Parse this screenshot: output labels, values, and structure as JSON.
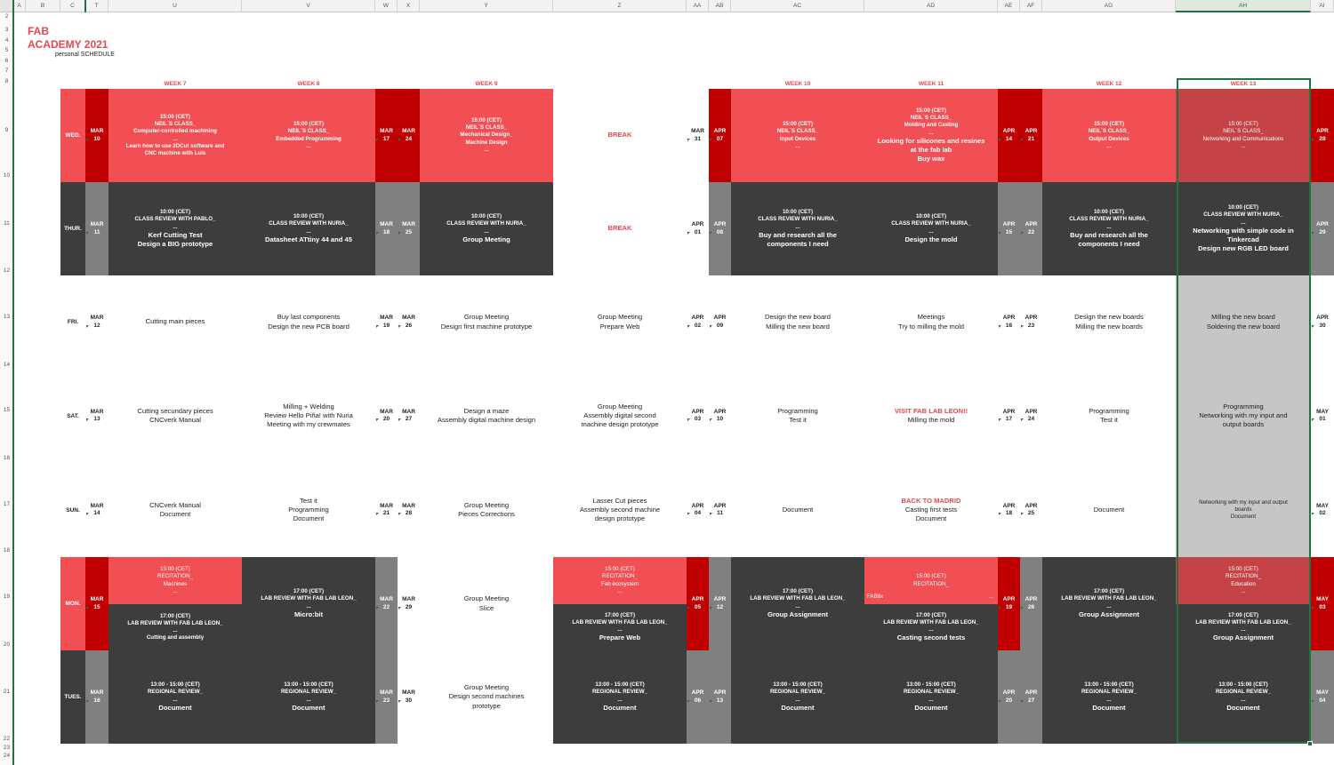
{
  "columns": [
    "A",
    "B",
    "C",
    "T",
    "U",
    "V",
    "W",
    "X",
    "Y",
    "Z",
    "AA",
    "AB",
    "AC",
    "AD",
    "AE",
    "AF",
    "AG",
    "AH",
    "AI"
  ],
  "rows": [
    "2",
    "3",
    "4",
    "5",
    "6",
    "7",
    "8",
    "9",
    "10",
    "11",
    "12",
    "13",
    "14",
    "15",
    "16",
    "17",
    "18",
    "19",
    "20",
    "21",
    "22",
    "23",
    "24"
  ],
  "title": {
    "line1": "FAB",
    "line2": "ACADEMY 2021",
    "subtitle": "personal SCHEDULE"
  },
  "weeks": {
    "w7": "WEEK 7",
    "w8": "WEEK 8",
    "w9": "WEEK 9",
    "w10": "WEEK 10",
    "w11": "WEEK 11",
    "w12": "WEEK 12",
    "w13": "WEEK 13"
  },
  "days": {
    "wed": "WED.",
    "thu": "THUR.",
    "fri": "FRI.",
    "sat": "SAT.",
    "sun": "SUN.",
    "mon": "MON.",
    "tue": "TUES."
  },
  "dates": {
    "t": [
      [
        "MAR",
        "10"
      ],
      [
        "MAR",
        "11"
      ],
      [
        "MAR",
        "12"
      ],
      [
        "MAR",
        "13"
      ],
      [
        "MAR",
        "14"
      ],
      [
        "MAR",
        "15"
      ],
      [
        "MAR",
        "16"
      ]
    ],
    "w": [
      [
        "MAR",
        "17"
      ],
      [
        "MAR",
        "18"
      ],
      [
        "MAR",
        "19"
      ],
      [
        "MAR",
        "20"
      ],
      [
        "MAR",
        "21"
      ],
      [
        "MAR",
        "22"
      ],
      [
        "MAR",
        "23"
      ]
    ],
    "x": [
      [
        "MAR",
        "24"
      ],
      [
        "MAR",
        "25"
      ],
      [
        "MAR",
        "26"
      ],
      [
        "MAR",
        "27"
      ],
      [
        "MAR",
        "28"
      ],
      [
        "MAR",
        "29"
      ],
      [
        "MAR",
        "30"
      ]
    ],
    "aa": [
      [
        "MAR",
        "31"
      ],
      [
        "APR",
        "01"
      ],
      [
        "APR",
        "02"
      ],
      [
        "APR",
        "03"
      ],
      [
        "APR",
        "04"
      ],
      [
        "APR",
        "05"
      ],
      [
        "APR",
        "06"
      ]
    ],
    "ab": [
      [
        "APR",
        "07"
      ],
      [
        "APR",
        "08"
      ],
      [
        "APR",
        "09"
      ],
      [
        "APR",
        "10"
      ],
      [
        "APR",
        "11"
      ],
      [
        "APR",
        "12"
      ],
      [
        "APR",
        "13"
      ]
    ],
    "ae": [
      [
        "APR",
        "14"
      ],
      [
        "APR",
        "15"
      ],
      [
        "APR",
        "16"
      ],
      [
        "APR",
        "17"
      ],
      [
        "APR",
        "18"
      ],
      [
        "APR",
        "19"
      ],
      [
        "APR",
        "20"
      ]
    ],
    "af": [
      [
        "APR",
        "21"
      ],
      [
        "APR",
        "22"
      ],
      [
        "APR",
        "23"
      ],
      [
        "APR",
        "24"
      ],
      [
        "APR",
        "25"
      ],
      [
        "APR",
        "26"
      ],
      [
        "APR",
        "27"
      ]
    ],
    "ai": [
      [
        "APR",
        "28"
      ],
      [
        "APR",
        "29"
      ],
      [
        "APR",
        "30"
      ],
      [
        "MAY",
        "01"
      ],
      [
        "MAY",
        "02"
      ],
      [
        "MAY",
        "03"
      ],
      [
        "MAY",
        "04"
      ]
    ]
  },
  "cells": {
    "u_wed": [
      "15:00 (CET)",
      "NEIL´S CLASS_",
      "Computer-controlled machining",
      "...",
      "Learn how to use 2DCut software and",
      "CNC machine with Luis"
    ],
    "v_wed": [
      "15:00 (CET)",
      "NEIL´S CLASS_",
      "Embedded Programming",
      "..."
    ],
    "y_wed": [
      "15:00 (CET)",
      "NEIL´S CLASS_",
      "Mechanical Design_",
      "Machine Design",
      "..."
    ],
    "z_wed": "BREAK",
    "ac_wed": [
      "15:00 (CET)",
      "NEIL´S CLASS_",
      "Input Devices",
      "..."
    ],
    "ad_wed": [
      "15:00 (CET)",
      "NEIL´S CLASS_",
      "Molding and Casting",
      "...",
      "Looking for silicones and resines",
      "at the fab lab",
      "Buy wax"
    ],
    "ag_wed": [
      "15:00 (CET)",
      "NEIL´S CLASS_",
      "Output Devices",
      "..."
    ],
    "ah_wed": [
      "15:00 (CET)",
      "NEIL´S CLASS_",
      "Networking and Communications",
      "..."
    ],
    "u_thu": [
      "10:00 (CET)",
      "CLASS REVIEW WITH PABLO_",
      "...",
      "Kerf Cutting Test",
      "Design a BIG prototype"
    ],
    "v_thu": [
      "10:00 (CET)",
      "CLASS REVIEW WITH NURIA_",
      "...",
      "Datasheet ATtiny  44 and 45"
    ],
    "y_thu": [
      "10:00 (CET)",
      "CLASS REVIEW WITH NURIA_",
      "...",
      "Group Meeting"
    ],
    "z_thu": "BREAK",
    "ac_thu": [
      "10:00 (CET)",
      "CLASS REVIEW WITH NURIA_",
      "...",
      "Buy and research all the",
      "components I need"
    ],
    "ad_thu": [
      "10:00 (CET)",
      "CLASS REVIEW WITH NURIA_",
      "...",
      "Design the mold"
    ],
    "ag_thu": [
      "10:00 (CET)",
      "CLASS REVIEW WITH NURIA_",
      "...",
      "Buy and research all the",
      "components I need"
    ],
    "ah_thu": [
      "10:00 (CET)",
      "CLASS REVIEW WITH NURIA_",
      "...",
      "Networking with simple code in",
      "Tinkercad",
      "Design new RGB LED board"
    ],
    "u_fri": [
      "Cutting main pieces"
    ],
    "v_fri": [
      "Buy last components",
      "Design the new PCB board"
    ],
    "y_fri": [
      "Group Meeting",
      "Design first machine prototype"
    ],
    "z_fri": [
      "Group Meeting",
      "Prepare Web"
    ],
    "ac_fri": [
      "Design the new board",
      "Milling the new board"
    ],
    "ad_fri": [
      "Meetings",
      "Try to milling the mold"
    ],
    "ag_fri": [
      "Design the new boards",
      "Milling the new boards"
    ],
    "ah_fri": [
      "Milling the new board",
      "Soldering the new board"
    ],
    "u_sat": [
      "Cutting secundary  pieces",
      "CNCverk Manual"
    ],
    "v_sat": [
      "Milling + Welding",
      "Review Hello Piña! with Nuria",
      "Meeting with my crewmates"
    ],
    "y_sat": [
      "Design a maze",
      "Assembly digital machine design"
    ],
    "z_sat": [
      "Group Meeting",
      "Assembly digital second",
      "machine design prototype"
    ],
    "ac_sat": [
      "Programming",
      "Test it"
    ],
    "ad_sat_red": "VISIT FAB LAB LEON!!",
    "ad_sat": [
      "Milling the mold"
    ],
    "ag_sat": [
      "Programming",
      "Test it"
    ],
    "ah_sat": [
      "Programming",
      "Networking with my input and",
      "output boards"
    ],
    "u_sun": [
      "CNCverk Manual",
      "Document"
    ],
    "v_sun": [
      "Test it",
      "Programming",
      "Document"
    ],
    "y_sun": [
      "Group Meeting",
      "Pieces Corrections"
    ],
    "z_sun": [
      "Lasser Cut pieces",
      "Assembly second machine",
      "design prototype"
    ],
    "ac_sun": [
      "Document"
    ],
    "ad_sun_red": "BACK TO MADRID",
    "ad_sun": [
      "Casting first tests",
      "Document"
    ],
    "ag_sun": [
      "Document"
    ],
    "ah_sun": [
      "Networking with my input and output",
      "boards",
      "Document"
    ],
    "u_mon_top": [
      "15:00 (CET)",
      "RECITATION_",
      "Machines",
      "..."
    ],
    "u_mon_bot": [
      "17:00 (CET)",
      "LAB REVIEW WITH FAB LAB LEON_",
      "...",
      "Cutting and assembly"
    ],
    "v_mon": [
      "17:00 (CET)",
      "LAB REVIEW WITH FAB LAB LEON_",
      "...",
      "Micro:bit"
    ],
    "y_mon": [
      "Group Meeting",
      "Slice"
    ],
    "z_mon_top": [
      "15:00 (CET)",
      "RECITATION_",
      "Fab ecosystem",
      "..."
    ],
    "z_mon_bot": [
      "17:00 (CET)",
      "LAB REVIEW WITH FAB LAB LEON_",
      "...",
      "Prepare Web"
    ],
    "ac_mon": [
      "17:00 (CET)",
      "LAB REVIEW WITH FAB LAB LEON_",
      "...",
      "Group Assignment"
    ],
    "ad_mon_top": [
      "15:00 (CET)",
      "RECITATION_"
    ],
    "ad_mon_fab": "FAB8x",
    "ad_mon_dots": "...",
    "ad_mon_bot": [
      "17:00 (CET)",
      "LAB REVIEW WITH FAB LAB LEON_",
      "...",
      "Casting second tests"
    ],
    "ag_mon": [
      "17:00 (CET)",
      "LAB REVIEW WITH FAB LAB LEON_",
      "...",
      "Group Assignment"
    ],
    "ah_mon_top": [
      "15:00 (CET)",
      "RECITATION_",
      "Education",
      "..."
    ],
    "ah_mon_bot": [
      "17:00 (CET)",
      "LAB REVIEW WITH FAB LAB LEON_",
      "...",
      "Group Assignment"
    ],
    "u_tue": [
      "13:00 - 15:00 (CET)",
      "REGIONAL REVIEW_",
      "...",
      "Document"
    ],
    "v_tue": [
      "13:00 - 15:00 (CET)",
      "REGIONAL REVIEW_",
      "...",
      "Document"
    ],
    "y_tue": [
      "Group Meeting",
      "Design second machines",
      "prototype"
    ],
    "z_tue": [
      "13:00 - 15:00 (CET)",
      "REGIONAL REVIEW_",
      "...",
      "Document"
    ],
    "ac_tue": [
      "13:00 - 15:00 (CET)",
      "REGIONAL REVIEW_",
      "...",
      "Document"
    ],
    "ad_tue": [
      "13:00 - 15:00 (CET)",
      "REGIONAL REVIEW_",
      "...",
      "Document"
    ],
    "ag_tue": [
      "13:00 - 15:00 (CET)",
      "REGIONAL REVIEW_",
      "...",
      "Document"
    ],
    "ah_tue": [
      "13:00 - 15:00 (CET)",
      "REGIONAL REVIEW_",
      "...",
      "Document"
    ]
  },
  "colors": {
    "red": "#f24f55",
    "darkred": "#c00000",
    "dark": "#3d3d3d",
    "grey": "#808080",
    "selected": "#217346"
  }
}
